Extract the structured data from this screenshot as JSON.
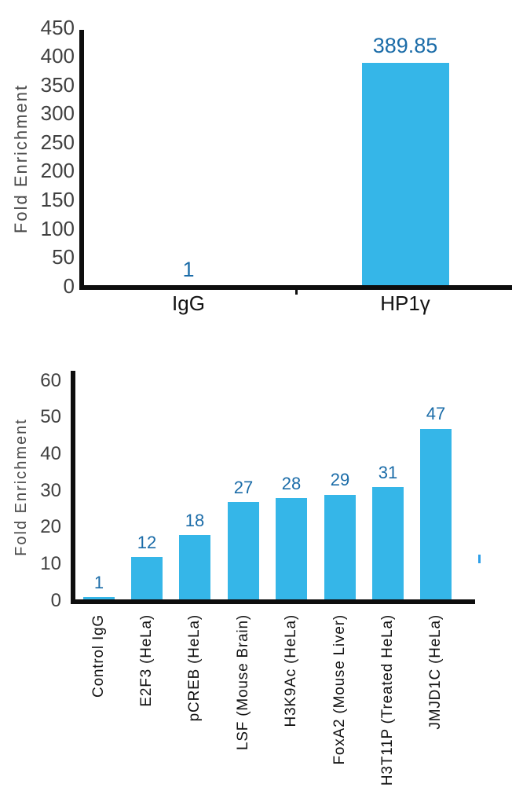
{
  "colors": {
    "background": "#FFFFFF",
    "bar_fill": "#35B6E8",
    "value_label": "#1B6CA8",
    "axis_line": "#0E0E0E",
    "tick_label": "#404040",
    "category_label": "#121212",
    "axis_title": "#4A4A4A",
    "stray_tick": "#2D9FE8"
  },
  "chart_data": [
    {
      "type": "bar",
      "title": "",
      "xlabel": "",
      "ylabel": "Fold Enrichment",
      "categories": [
        "IgG",
        "HP1γ"
      ],
      "values": [
        1,
        389.85
      ],
      "value_labels": [
        "1",
        "389.85"
      ],
      "ylim": [
        0,
        450
      ],
      "yticks": [
        0,
        50,
        100,
        150,
        200,
        250,
        300,
        350,
        400,
        450
      ],
      "grid": false,
      "legend": "none",
      "bar_color": "#35B6E8"
    },
    {
      "type": "bar",
      "title": "",
      "xlabel": "",
      "ylabel": "Fold Enrichment",
      "categories": [
        "Control IgG",
        "E2F3 (HeLa)",
        "pCREB (HeLa)",
        "LSF (Mouse Brain)",
        "H3K9Ac (HeLa)",
        "FoxA2 (Mouse Liver)",
        "H3T11P (Treated HeLa)",
        "JMJD1C (HeLa)"
      ],
      "values": [
        1,
        12,
        18,
        27,
        28,
        29,
        31,
        47
      ],
      "value_labels": [
        "1",
        "12",
        "18",
        "27",
        "28",
        "29",
        "31",
        "47"
      ],
      "ylim": [
        0,
        60
      ],
      "yticks": [
        0,
        10,
        20,
        30,
        40,
        50,
        60
      ],
      "grid": false,
      "legend": "none",
      "bar_color": "#35B6E8"
    }
  ]
}
